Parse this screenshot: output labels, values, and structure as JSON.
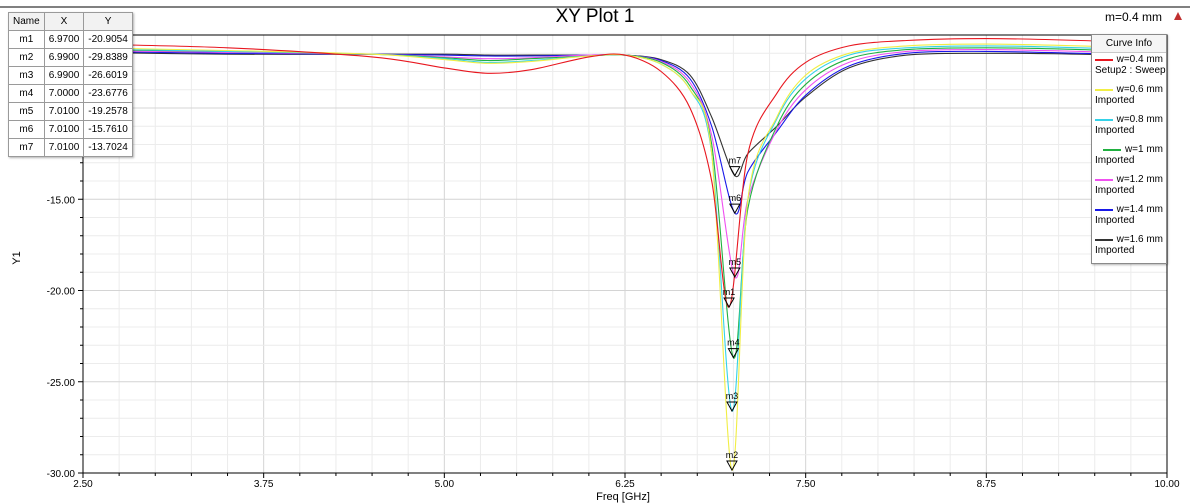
{
  "chart_data": {
    "type": "line",
    "title": "XY Plot 1",
    "top_right_label": "m=0.4 mm",
    "xlabel": "Freq [GHz]",
    "ylabel": "Y1",
    "xlim": [
      2.5,
      10.0
    ],
    "ylim": [
      -30.0,
      -6.0
    ],
    "x_ticks": [
      2.5,
      3.75,
      5.0,
      6.25,
      7.5,
      8.75,
      10.0
    ],
    "x_tick_labels": [
      "2.50",
      "3.75",
      "5.00",
      "6.25",
      "7.50",
      "8.75",
      "10.00"
    ],
    "y_ticks": [
      -30,
      -25,
      -20,
      -15,
      -10
    ],
    "y_tick_labels": [
      "-30.00",
      "-25.00",
      "-20.00",
      "-15.00",
      "-10.00"
    ],
    "grid": true,
    "legend": {
      "title": "Curve Info",
      "placement": "top-right",
      "items": [
        {
          "label": "w=0.4 mm",
          "sub": "Setup2 : Sweep",
          "color": "#e8171f"
        },
        {
          "label": "w=0.6 mm",
          "sub": "Imported",
          "color": "#f1ee44"
        },
        {
          "label": "w=0.8 mm",
          "sub": "Imported",
          "color": "#34d2e8"
        },
        {
          "label": "w=1 mm",
          "sub": "Imported",
          "color": "#20b040"
        },
        {
          "label": "w=1.2 mm",
          "sub": "Imported",
          "color": "#f050f0"
        },
        {
          "label": "w=1.4 mm",
          "sub": "Imported",
          "color": "#1818e8"
        },
        {
          "label": "w=1.6 mm",
          "sub": "Imported",
          "color": "#333333"
        }
      ]
    },
    "series": [
      {
        "name": "w=0.4 mm",
        "color": "#e8171f",
        "x": [
          2.5,
          3.5,
          4.5,
          5.0,
          5.3,
          5.6,
          6.0,
          6.25,
          6.5,
          6.7,
          6.85,
          6.97,
          7.1,
          7.3,
          7.5,
          7.8,
          8.2,
          8.75,
          9.4,
          10.0
        ],
        "y": [
          -6.5,
          -6.7,
          -7.2,
          -7.8,
          -8.1,
          -7.9,
          -7.2,
          -7.1,
          -8.0,
          -10.0,
          -14.0,
          -20.9054,
          -12.5,
          -9.2,
          -7.5,
          -6.6,
          -6.3,
          -6.2,
          -6.3,
          -6.5
        ]
      },
      {
        "name": "w=0.6 mm",
        "color": "#f1ee44",
        "x": [
          2.5,
          3.5,
          4.5,
          5.0,
          5.3,
          5.6,
          6.0,
          6.25,
          6.5,
          6.7,
          6.85,
          6.99,
          7.1,
          7.3,
          7.5,
          7.8,
          8.2,
          8.75,
          9.4,
          10.0
        ],
        "y": [
          -6.7,
          -6.85,
          -7.05,
          -7.35,
          -7.55,
          -7.45,
          -7.15,
          -7.1,
          -7.6,
          -9.0,
          -12.5,
          -29.8389,
          -15.0,
          -10.5,
          -8.2,
          -7.0,
          -6.6,
          -6.5,
          -6.6,
          -6.8
        ]
      },
      {
        "name": "w=0.8 mm",
        "color": "#34d2e8",
        "x": [
          2.5,
          3.5,
          4.5,
          5.0,
          5.3,
          5.6,
          6.0,
          6.25,
          6.5,
          6.7,
          6.85,
          6.99,
          7.1,
          7.3,
          7.5,
          7.8,
          8.2,
          8.75,
          9.4,
          10.0
        ],
        "y": [
          -6.75,
          -6.9,
          -7.05,
          -7.3,
          -7.5,
          -7.4,
          -7.15,
          -7.1,
          -7.6,
          -9.0,
          -12.5,
          -26.6019,
          -15.0,
          -10.6,
          -8.4,
          -7.1,
          -6.7,
          -6.6,
          -6.7,
          -6.9
        ]
      },
      {
        "name": "w=1 mm",
        "color": "#20b040",
        "x": [
          2.5,
          3.5,
          4.5,
          5.0,
          5.3,
          5.6,
          6.0,
          6.25,
          6.5,
          6.7,
          6.85,
          7.0,
          7.1,
          7.3,
          7.5,
          7.8,
          8.2,
          8.75,
          9.4,
          10.0
        ],
        "y": [
          -6.8,
          -6.9,
          -7.05,
          -7.25,
          -7.4,
          -7.3,
          -7.15,
          -7.1,
          -7.5,
          -8.8,
          -12.0,
          -23.6776,
          -15.5,
          -11.0,
          -8.7,
          -7.3,
          -6.8,
          -6.7,
          -6.8,
          -7.0
        ]
      },
      {
        "name": "w=1.2 mm",
        "color": "#f050f0",
        "x": [
          2.5,
          3.5,
          4.5,
          5.0,
          5.3,
          5.6,
          6.0,
          6.25,
          6.5,
          6.7,
          6.85,
          7.01,
          7.1,
          7.3,
          7.5,
          7.8,
          8.2,
          8.75,
          9.4,
          10.0
        ],
        "y": [
          -6.85,
          -6.95,
          -7.05,
          -7.2,
          -7.3,
          -7.25,
          -7.1,
          -7.1,
          -7.45,
          -8.6,
          -11.5,
          -19.2578,
          -15.0,
          -11.2,
          -9.0,
          -7.5,
          -6.9,
          -6.8,
          -6.9,
          -7.05
        ]
      },
      {
        "name": "w=1.4 mm",
        "color": "#1818e8",
        "x": [
          2.5,
          3.5,
          4.5,
          5.0,
          5.3,
          5.6,
          6.0,
          6.25,
          6.5,
          6.7,
          6.85,
          7.01,
          7.1,
          7.3,
          7.5,
          7.8,
          8.2,
          8.75,
          9.4,
          10.0
        ],
        "y": [
          -6.9,
          -7.0,
          -7.05,
          -7.1,
          -7.15,
          -7.15,
          -7.1,
          -7.1,
          -7.4,
          -8.4,
          -11.0,
          -15.761,
          -13.5,
          -11.3,
          -9.3,
          -7.7,
          -7.0,
          -6.9,
          -7.0,
          -7.1
        ]
      },
      {
        "name": "w=1.6 mm",
        "color": "#333333",
        "x": [
          2.5,
          3.5,
          4.5,
          5.0,
          5.3,
          5.6,
          6.0,
          6.25,
          6.5,
          6.7,
          6.85,
          7.01,
          7.1,
          7.3,
          7.5,
          7.8,
          8.2,
          8.75,
          9.4,
          10.0
        ],
        "y": [
          -6.95,
          -7.05,
          -7.05,
          -7.05,
          -7.1,
          -7.1,
          -7.1,
          -7.1,
          -7.35,
          -8.2,
          -10.5,
          -13.7024,
          -12.5,
          -11.0,
          -9.4,
          -7.8,
          -7.1,
          -7.0,
          -7.05,
          -7.15
        ]
      }
    ],
    "markers": {
      "headers": [
        "Name",
        "X",
        "Y"
      ],
      "rows": [
        {
          "name": "m1",
          "x": "6.9700",
          "y": "-20.9054",
          "xv": 6.97,
          "yv": -20.9054
        },
        {
          "name": "m2",
          "x": "6.9900",
          "y": "-29.8389",
          "xv": 6.99,
          "yv": -29.8389
        },
        {
          "name": "m3",
          "x": "6.9900",
          "y": "-26.6019",
          "xv": 6.99,
          "yv": -26.6019
        },
        {
          "name": "m4",
          "x": "7.0000",
          "y": "-23.6776",
          "xv": 7.0,
          "yv": -23.6776
        },
        {
          "name": "m5",
          "x": "7.0100",
          "y": "-19.2578",
          "xv": 7.01,
          "yv": -19.2578
        },
        {
          "name": "m6",
          "x": "7.0100",
          "y": "-15.7610",
          "xv": 7.01,
          "yv": -15.761
        },
        {
          "name": "m7",
          "x": "7.0100",
          "y": "-13.7024",
          "xv": 7.01,
          "yv": -13.7024
        }
      ]
    }
  }
}
